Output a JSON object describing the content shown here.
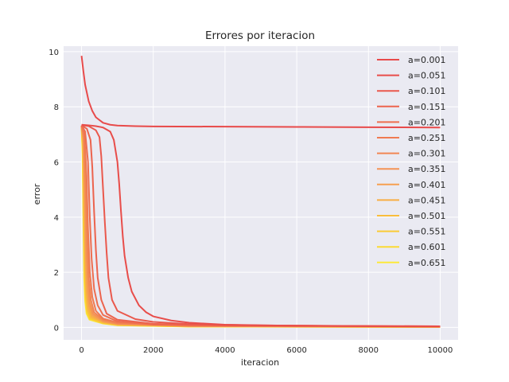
{
  "chart_data": {
    "type": "line",
    "title": "Errores por iteracion",
    "xlabel": "iteracion",
    "ylabel": "error",
    "xlim": [
      -500,
      10500
    ],
    "ylim": [
      -0.45,
      10.2
    ],
    "xticks": [
      0,
      2000,
      4000,
      6000,
      8000,
      10000
    ],
    "yticks": [
      0,
      2,
      4,
      6,
      8,
      10
    ],
    "grid": true,
    "legend_position": "top-right",
    "series": [
      {
        "name": "a=0.001",
        "color": "#e84a4a",
        "points": [
          [
            0,
            9.85
          ],
          [
            50,
            9.3
          ],
          [
            100,
            8.8
          ],
          [
            200,
            8.2
          ],
          [
            300,
            7.85
          ],
          [
            400,
            7.62
          ],
          [
            600,
            7.42
          ],
          [
            800,
            7.35
          ],
          [
            1000,
            7.32
          ],
          [
            1500,
            7.3
          ],
          [
            2000,
            7.29
          ],
          [
            4000,
            7.28
          ],
          [
            6000,
            7.27
          ],
          [
            8000,
            7.26
          ],
          [
            10000,
            7.25
          ]
        ]
      },
      {
        "name": "a=0.051",
        "color": "#e84d4a",
        "points": [
          [
            0,
            7.35
          ],
          [
            200,
            7.33
          ],
          [
            400,
            7.3
          ],
          [
            600,
            7.25
          ],
          [
            800,
            7.1
          ],
          [
            900,
            6.8
          ],
          [
            1000,
            6.0
          ],
          [
            1050,
            5.2
          ],
          [
            1100,
            4.2
          ],
          [
            1150,
            3.3
          ],
          [
            1200,
            2.6
          ],
          [
            1300,
            1.8
          ],
          [
            1400,
            1.3
          ],
          [
            1600,
            0.8
          ],
          [
            1800,
            0.55
          ],
          [
            2000,
            0.4
          ],
          [
            2500,
            0.25
          ],
          [
            3000,
            0.17
          ],
          [
            4000,
            0.1
          ],
          [
            6000,
            0.06
          ],
          [
            8000,
            0.045
          ],
          [
            10000,
            0.04
          ]
        ]
      },
      {
        "name": "a=0.101",
        "color": "#ea584c",
        "points": [
          [
            0,
            7.34
          ],
          [
            200,
            7.3
          ],
          [
            400,
            7.15
          ],
          [
            500,
            6.9
          ],
          [
            550,
            6.2
          ],
          [
            600,
            5.0
          ],
          [
            650,
            3.8
          ],
          [
            700,
            2.7
          ],
          [
            750,
            1.8
          ],
          [
            850,
            1.0
          ],
          [
            1000,
            0.6
          ],
          [
            1500,
            0.3
          ],
          [
            2000,
            0.2
          ],
          [
            3000,
            0.12
          ],
          [
            5000,
            0.07
          ],
          [
            10000,
            0.04
          ]
        ]
      },
      {
        "name": "a=0.151",
        "color": "#ec634d",
        "points": [
          [
            0,
            7.33
          ],
          [
            150,
            7.2
          ],
          [
            250,
            6.8
          ],
          [
            300,
            5.8
          ],
          [
            350,
            4.2
          ],
          [
            400,
            2.8
          ],
          [
            450,
            1.8
          ],
          [
            550,
            1.0
          ],
          [
            700,
            0.5
          ],
          [
            1000,
            0.28
          ],
          [
            2000,
            0.13
          ],
          [
            4000,
            0.07
          ],
          [
            10000,
            0.035
          ]
        ]
      },
      {
        "name": "a=0.201",
        "color": "#ee6e4f",
        "points": [
          [
            0,
            7.33
          ],
          [
            100,
            7.1
          ],
          [
            180,
            6.0
          ],
          [
            230,
            4.0
          ],
          [
            280,
            2.5
          ],
          [
            350,
            1.4
          ],
          [
            450,
            0.8
          ],
          [
            600,
            0.45
          ],
          [
            1000,
            0.22
          ],
          [
            2000,
            0.1
          ],
          [
            10000,
            0.03
          ]
        ]
      },
      {
        "name": "a=0.251",
        "color": "#f07a51",
        "points": [
          [
            0,
            7.32
          ],
          [
            80,
            7.0
          ],
          [
            140,
            5.5
          ],
          [
            180,
            3.6
          ],
          [
            230,
            2.0
          ],
          [
            300,
            1.1
          ],
          [
            400,
            0.6
          ],
          [
            600,
            0.32
          ],
          [
            1000,
            0.18
          ],
          [
            3000,
            0.07
          ],
          [
            10000,
            0.03
          ]
        ]
      },
      {
        "name": "a=0.301",
        "color": "#f28653",
        "points": [
          [
            0,
            7.32
          ],
          [
            70,
            6.9
          ],
          [
            120,
            5.0
          ],
          [
            160,
            3.0
          ],
          [
            200,
            1.8
          ],
          [
            260,
            1.0
          ],
          [
            350,
            0.55
          ],
          [
            600,
            0.28
          ],
          [
            1000,
            0.15
          ],
          [
            3000,
            0.06
          ],
          [
            10000,
            0.028
          ]
        ]
      },
      {
        "name": "a=0.351",
        "color": "#f49355",
        "points": [
          [
            0,
            7.31
          ],
          [
            60,
            6.8
          ],
          [
            100,
            4.8
          ],
          [
            140,
            2.7
          ],
          [
            180,
            1.6
          ],
          [
            230,
            0.9
          ],
          [
            320,
            0.5
          ],
          [
            600,
            0.24
          ],
          [
            1000,
            0.13
          ],
          [
            3000,
            0.05
          ],
          [
            10000,
            0.025
          ]
        ]
      },
      {
        "name": "a=0.401",
        "color": "#f6a050",
        "points": [
          [
            0,
            7.31
          ],
          [
            50,
            6.8
          ],
          [
            90,
            4.6
          ],
          [
            120,
            2.6
          ],
          [
            160,
            1.4
          ],
          [
            210,
            0.8
          ],
          [
            300,
            0.45
          ],
          [
            600,
            0.22
          ],
          [
            1000,
            0.12
          ],
          [
            3000,
            0.05
          ],
          [
            10000,
            0.022
          ]
        ]
      },
      {
        "name": "a=0.451",
        "color": "#f8ae45",
        "points": [
          [
            0,
            7.3
          ],
          [
            45,
            6.7
          ],
          [
            80,
            4.4
          ],
          [
            110,
            2.4
          ],
          [
            140,
            1.3
          ],
          [
            190,
            0.72
          ],
          [
            280,
            0.4
          ],
          [
            600,
            0.2
          ],
          [
            1000,
            0.11
          ],
          [
            3000,
            0.045
          ],
          [
            10000,
            0.02
          ]
        ]
      },
      {
        "name": "a=0.501",
        "color": "#f9bd3c",
        "points": [
          [
            0,
            7.3
          ],
          [
            40,
            6.6
          ],
          [
            70,
            4.3
          ],
          [
            100,
            2.2
          ],
          [
            130,
            1.2
          ],
          [
            170,
            0.65
          ],
          [
            260,
            0.36
          ],
          [
            600,
            0.18
          ],
          [
            1000,
            0.1
          ],
          [
            3000,
            0.04
          ],
          [
            10000,
            0.018
          ]
        ]
      },
      {
        "name": "a=0.551",
        "color": "#facb35",
        "points": [
          [
            0,
            7.3
          ],
          [
            35,
            6.5
          ],
          [
            60,
            4.2
          ],
          [
            90,
            2.0
          ],
          [
            120,
            1.1
          ],
          [
            160,
            0.6
          ],
          [
            240,
            0.33
          ],
          [
            600,
            0.16
          ],
          [
            1000,
            0.09
          ],
          [
            3000,
            0.035
          ],
          [
            10000,
            0.016
          ]
        ]
      },
      {
        "name": "a=0.601",
        "color": "#fbda33",
        "points": [
          [
            0,
            7.29
          ],
          [
            30,
            6.4
          ],
          [
            55,
            4.0
          ],
          [
            80,
            1.9
          ],
          [
            110,
            1.0
          ],
          [
            150,
            0.55
          ],
          [
            230,
            0.3
          ],
          [
            600,
            0.15
          ],
          [
            1000,
            0.08
          ],
          [
            3000,
            0.032
          ],
          [
            10000,
            0.014
          ]
        ]
      },
      {
        "name": "a=0.651",
        "color": "#fce93a",
        "points": [
          [
            0,
            7.29
          ],
          [
            28,
            6.3
          ],
          [
            50,
            3.9
          ],
          [
            72,
            1.8
          ],
          [
            100,
            0.95
          ],
          [
            140,
            0.5
          ],
          [
            220,
            0.28
          ],
          [
            600,
            0.14
          ],
          [
            1000,
            0.075
          ],
          [
            3000,
            0.03
          ],
          [
            10000,
            0.012
          ]
        ]
      }
    ]
  }
}
